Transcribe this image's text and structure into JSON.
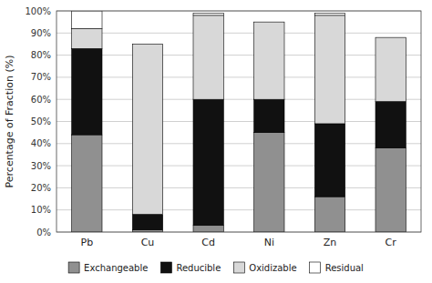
{
  "chart_data": {
    "type": "bar",
    "stacked": true,
    "categories": [
      "Pb",
      "Cu",
      "Cd",
      "Ni",
      "Zn",
      "Cr"
    ],
    "series": [
      {
        "name": "Exchangeable",
        "color": "#909090",
        "values": [
          44,
          1,
          3,
          45,
          16,
          38
        ]
      },
      {
        "name": "Reducible",
        "color": "#111111",
        "values": [
          39,
          7,
          57,
          15,
          33,
          21
        ]
      },
      {
        "name": "Oxidizable",
        "color": "#d8d8d8",
        "values": [
          9,
          77,
          38,
          35,
          49,
          29
        ]
      },
      {
        "name": "Residual",
        "color": "#ffffff",
        "values": [
          8,
          0,
          1,
          0,
          1,
          0
        ]
      }
    ],
    "y_label": "Percentage of Fraction (%)",
    "ylim": [
      0,
      100
    ],
    "yticks": [
      {
        "value": 0,
        "label": "0%"
      },
      {
        "value": 10,
        "label": "10%"
      },
      {
        "value": 20,
        "label": "20%"
      },
      {
        "value": 30,
        "label": "30%"
      },
      {
        "value": 40,
        "label": "40%"
      },
      {
        "value": 50,
        "label": "50%"
      },
      {
        "value": 60,
        "label": "60%"
      },
      {
        "value": 70,
        "label": "70%"
      },
      {
        "value": 80,
        "label": "80%"
      },
      {
        "value": 90,
        "label": "90%"
      },
      {
        "value": 100,
        "label": "100%"
      }
    ],
    "grid": true,
    "legend": "bottom",
    "background_color": "#ffffff"
  }
}
